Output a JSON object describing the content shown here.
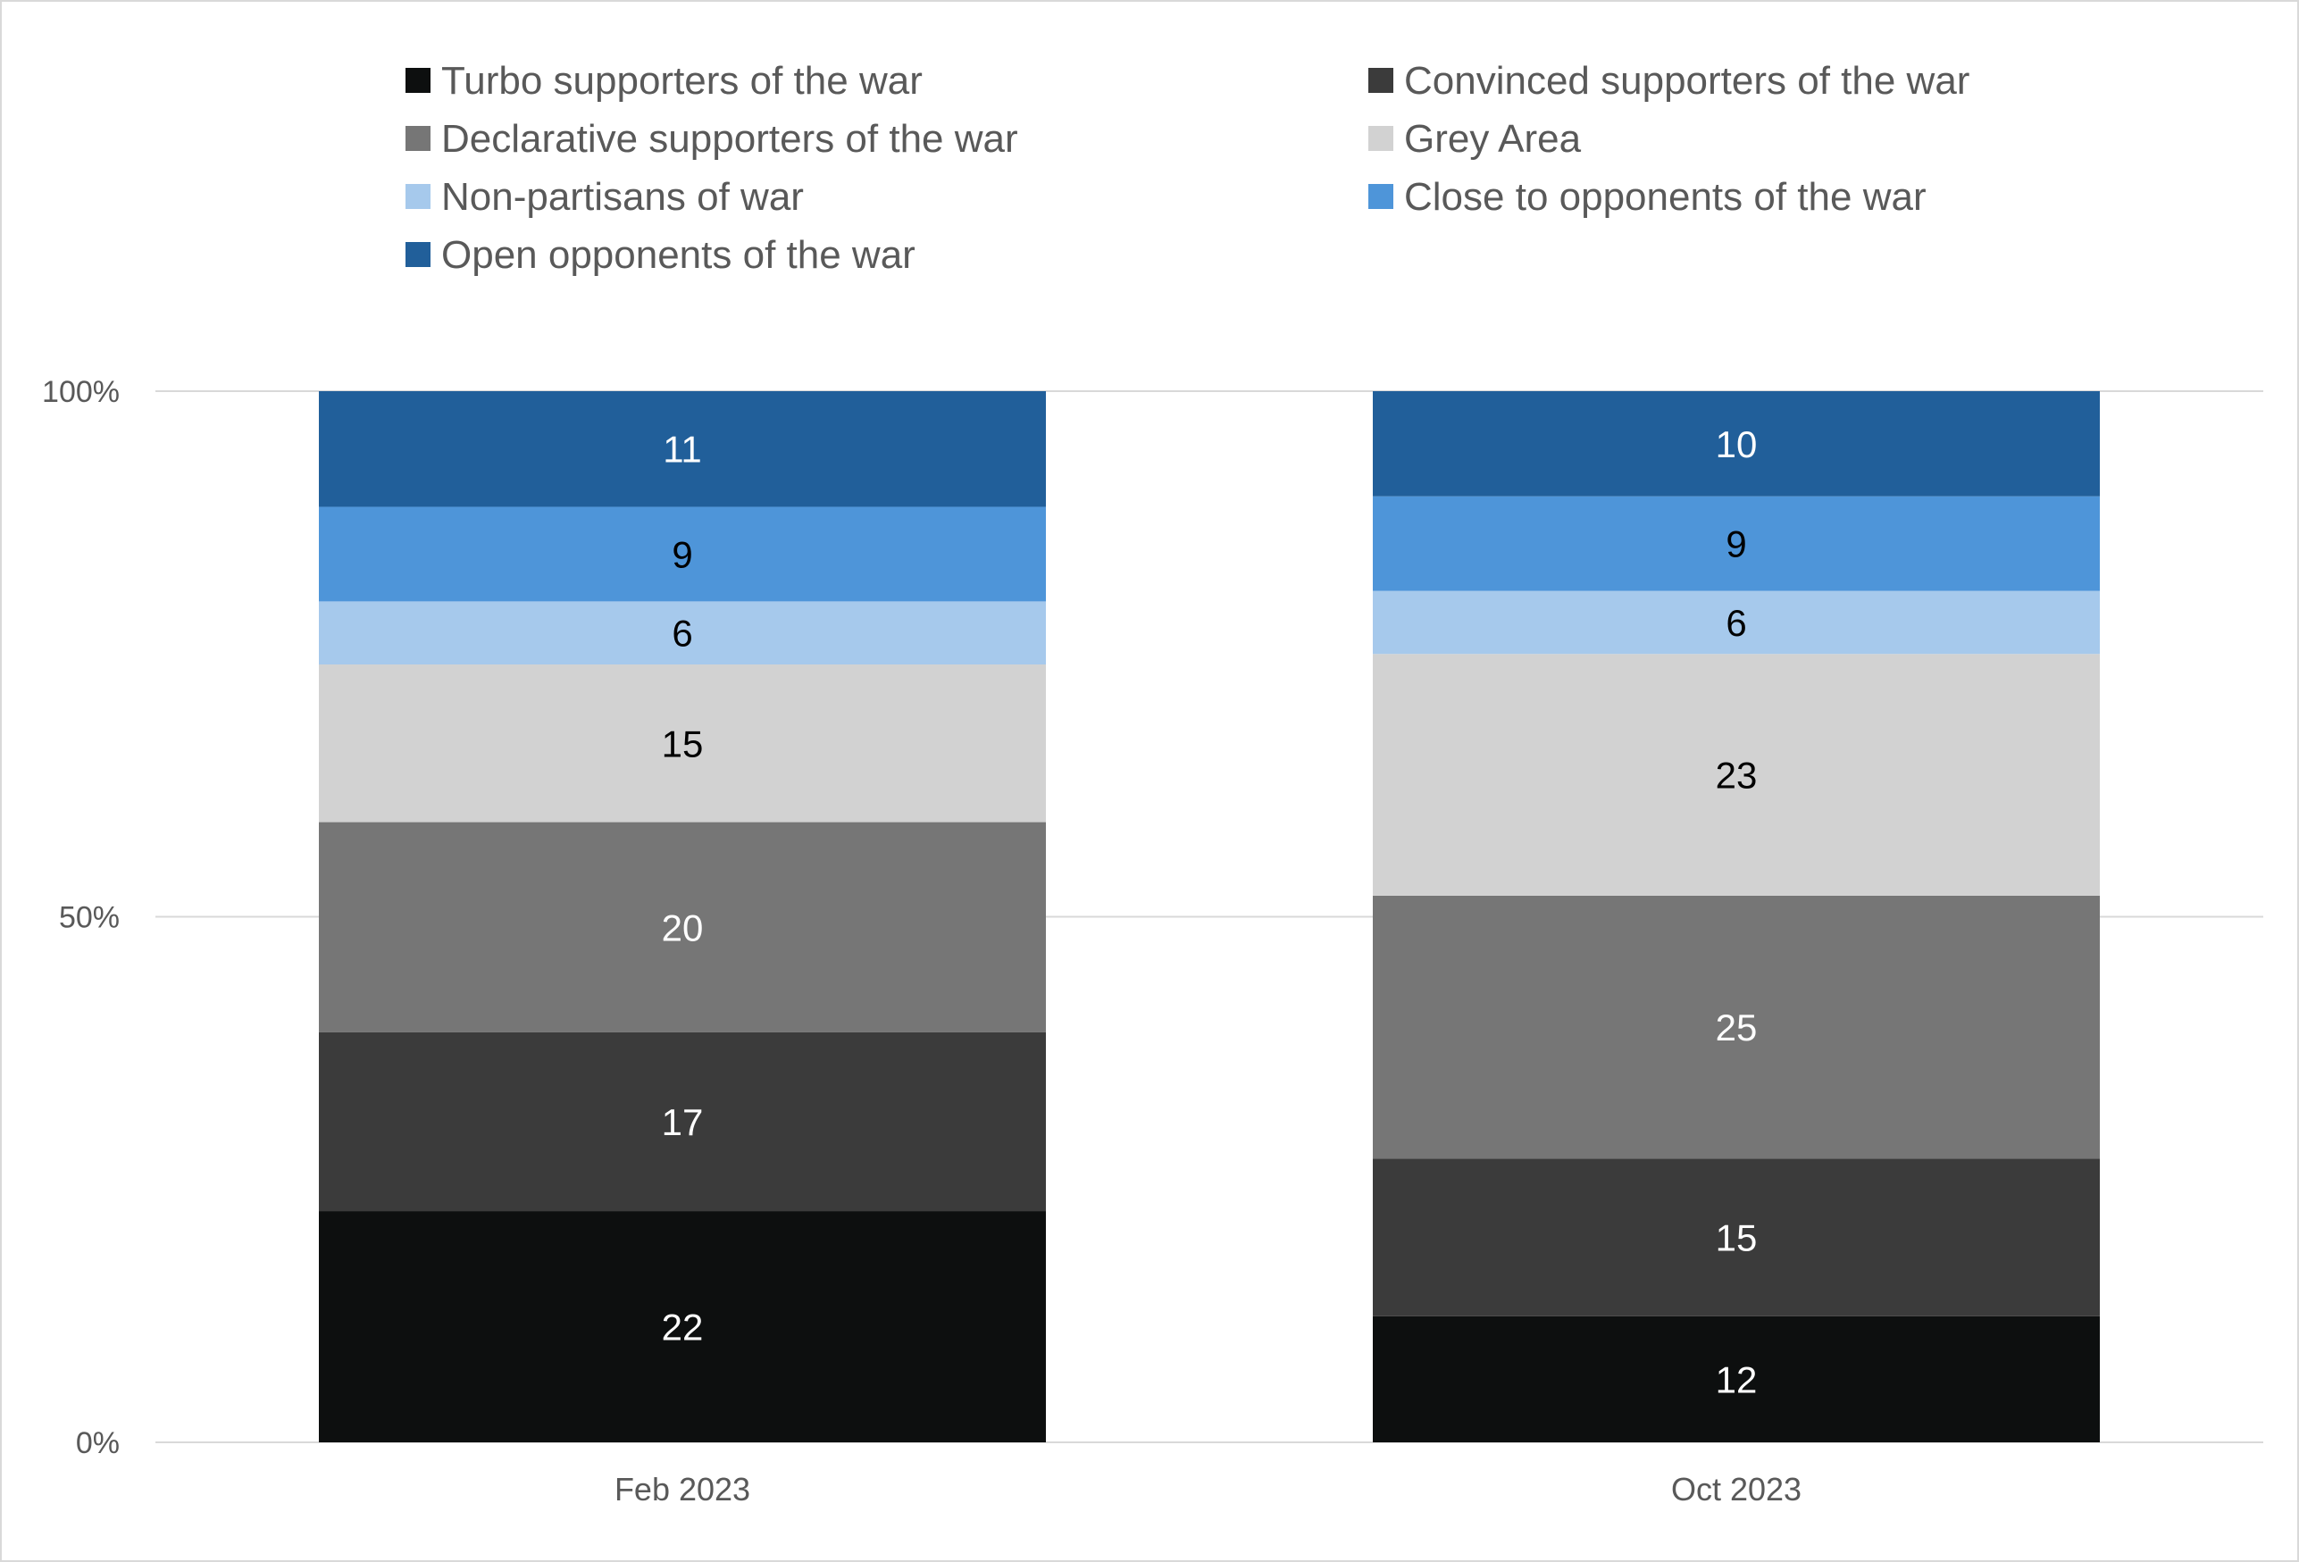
{
  "chart_data": {
    "type": "bar",
    "stacked": true,
    "percent_stacked": true,
    "categories": [
      "Feb 2023",
      "Oct  2023"
    ],
    "series": [
      {
        "name": "Turbo supporters of the war",
        "values": [
          22,
          12
        ],
        "color": "#0d0f0f",
        "label_color": "#ffffff"
      },
      {
        "name": "Convinced supporters of the war",
        "values": [
          17,
          15
        ],
        "color": "#3b3b3b",
        "label_color": "#ffffff"
      },
      {
        "name": "Declarative supporters of the war",
        "values": [
          20,
          25
        ],
        "color": "#767676",
        "label_color": "#ffffff"
      },
      {
        "name": "Grey Area",
        "values": [
          15,
          23
        ],
        "color": "#d2d2d2",
        "label_color": "#000000"
      },
      {
        "name": "Non-partisans of war",
        "values": [
          6,
          6
        ],
        "color": "#a6c9ec",
        "label_color": "#000000"
      },
      {
        "name": "Close to opponents of the war",
        "values": [
          9,
          9
        ],
        "color": "#4e95d9",
        "label_color": "#000000"
      },
      {
        "name": "Open opponents of the war",
        "values": [
          11,
          10
        ],
        "color": "#215f9a",
        "label_color": "#ffffff"
      }
    ],
    "y_ticks": [
      "0%",
      "50%",
      "100%"
    ],
    "ylim": [
      0,
      100
    ],
    "grid": true,
    "legend_position": "top",
    "gridline_color": "#d9d9d9",
    "text_color": "#595959"
  }
}
